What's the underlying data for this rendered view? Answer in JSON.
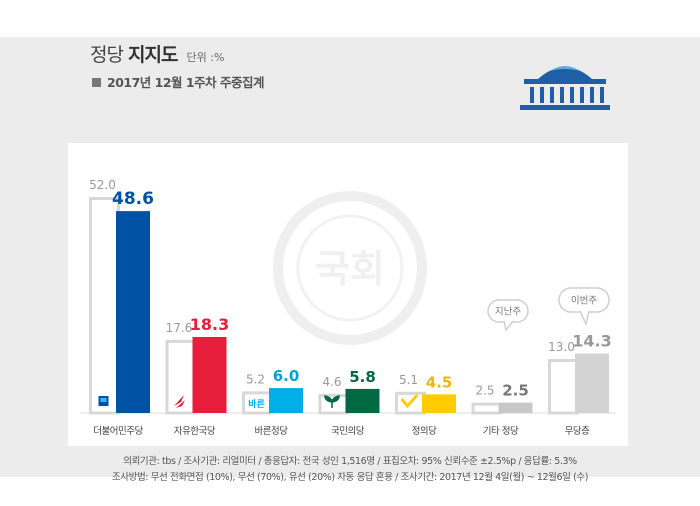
{
  "header": {
    "title_prefix": "정당",
    "title_bold": "지지도",
    "unit": "단위 :%",
    "subtitle": "2017년 12월 1주차 주중집계"
  },
  "notes": {
    "line1": "의뢰기관: tbs / 조사기관: 리얼미터 / 총응답자: 전국 성인 1,516명 / 표집오차: 95% 신뢰수준 ±2.5%p / 응답률: 5.3%",
    "line2": "조사방법: 무선 전화면접 (10%), 무선 (70%), 유선 (20%) 자동 응답 혼용 / 조사기간: 2017년 12월 4일(월) ~ 12월6일 (수)"
  },
  "watermark": "국회",
  "colors": {
    "stage_bg": "#ececec",
    "prev_outline": "#d8d8d8",
    "prev_text": "#9a9a9a"
  },
  "chart_data": {
    "type": "bar",
    "categories": [
      "더불어민주당",
      "자유한국당",
      "바른정당",
      "국민의당",
      "정의당",
      "기타 정당",
      "무당층"
    ],
    "series": [
      {
        "name": "지난주",
        "values": [
          52.0,
          17.6,
          5.2,
          4.6,
          5.1,
          2.5,
          13.0
        ]
      },
      {
        "name": "이번주",
        "values": [
          48.6,
          18.3,
          6.0,
          5.8,
          4.5,
          2.5,
          14.3
        ]
      }
    ],
    "value_labels_prev": [
      "52.0",
      "17.6",
      "5.2",
      "4.6",
      "5.1",
      "2.5",
      "13.0"
    ],
    "value_labels_curr": [
      "48.6",
      "18.3",
      "6.0",
      "5.8",
      "4.5",
      "2.5",
      "14.3"
    ],
    "bar_colors": [
      "#0052a4",
      "#e61e3c",
      "#00aee8",
      "#006941",
      "#ffcc00",
      "#c8c8c8",
      "#d3d3d3"
    ],
    "label_colors": [
      "#0052a4",
      "#e61e3c",
      "#00a0d8",
      "#006941",
      "#eab800",
      "#777777",
      "#999999"
    ],
    "callouts": {
      "prev": "지난주",
      "curr": "이번주"
    },
    "party_logos": [
      "square-logo-icon",
      "torch-logo-icon",
      "bareun-logo-icon",
      "sprout-logo-icon",
      "check-logo-icon",
      "",
      ""
    ],
    "bareun_logo_text": "바른",
    "ylim": [
      0,
      52
    ]
  }
}
